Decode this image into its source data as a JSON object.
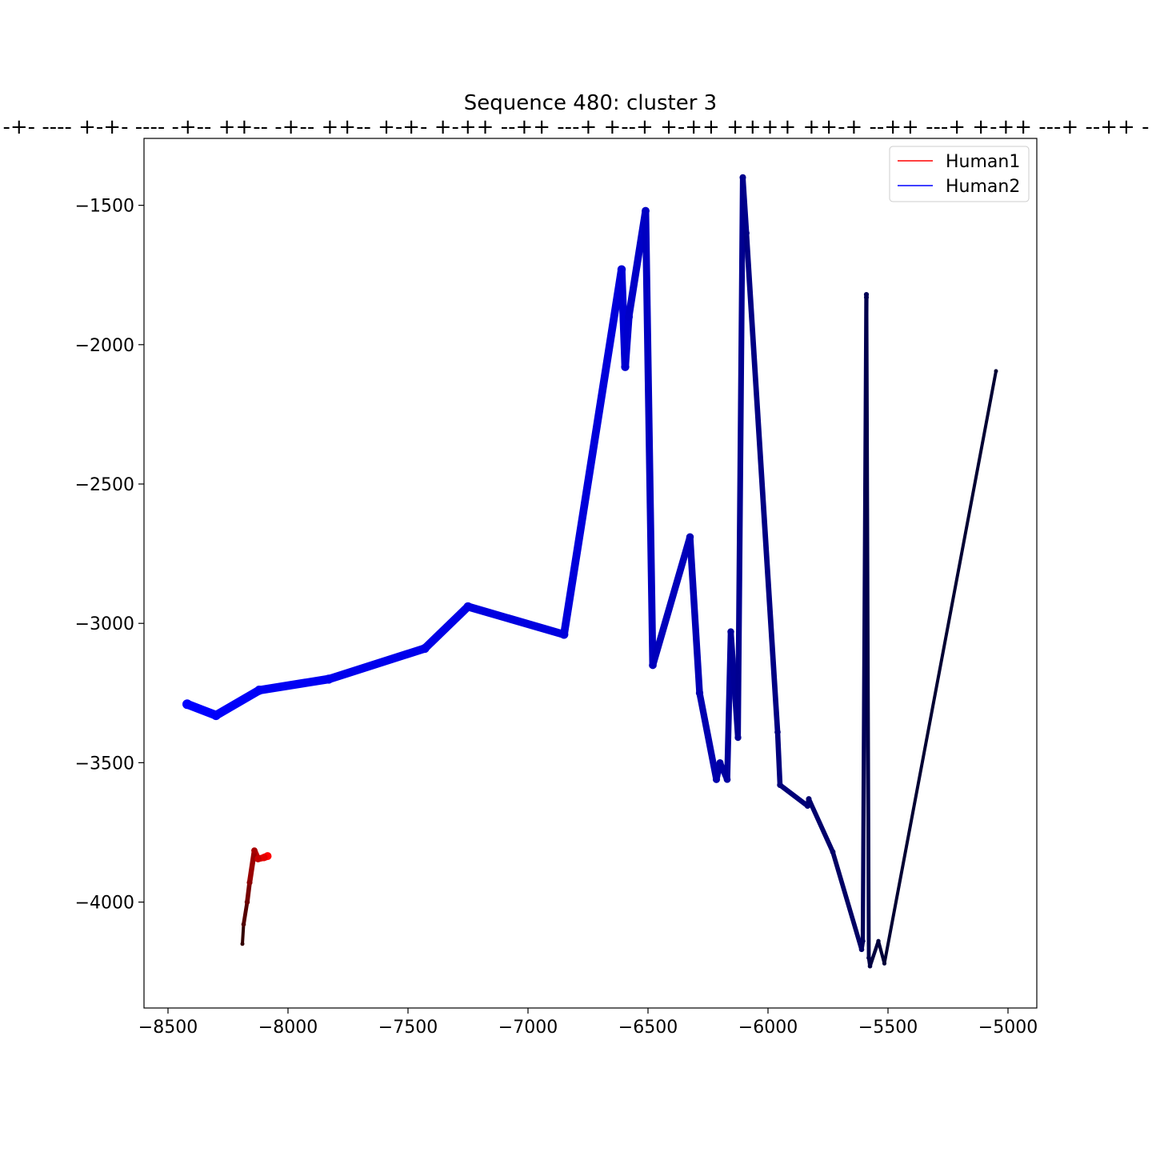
{
  "chart_data": {
    "type": "line",
    "title": "Sequence 480: cluster 3",
    "subtitle": "-+- ---- +-+- ---- -+-- ++-- -+-- ++-- +-+- +-++ --++ ---+ +--+ +-++ ++++ ++-+ --++ ---+ +-++ ---+ --++ -",
    "xlabel": "",
    "ylabel": "",
    "xlim": [
      -8600,
      -4880
    ],
    "ylim": [
      -4380,
      -1260
    ],
    "x_ticks": [
      -8500,
      -8000,
      -7500,
      -7000,
      -6500,
      -6000,
      -5500,
      -5000
    ],
    "y_ticks": [
      -1500,
      -2000,
      -2500,
      -3000,
      -3500,
      -4000
    ],
    "x_tick_labels": [
      "−8500",
      "−8000",
      "−7500",
      "−7000",
      "−6500",
      "−6000",
      "−5500",
      "−5000"
    ],
    "y_tick_labels": [
      "−1500",
      "−2000",
      "−2500",
      "−3000",
      "−3500",
      "−4000"
    ],
    "grid": false,
    "legend_position": "top-right",
    "series": [
      {
        "name": "Human1",
        "color": "#ff0000",
        "color_end": "#330000",
        "x": [
          -8085,
          -8100,
          -8125,
          -8140,
          -8160,
          -8170,
          -8185,
          -8190
        ],
        "y": [
          -3835,
          -3840,
          -3845,
          -3815,
          -3930,
          -4000,
          -4080,
          -4150
        ]
      },
      {
        "name": "Human2",
        "color": "#0000ff",
        "color_end": "#000033",
        "x": [
          -8420,
          -8300,
          -8120,
          -7830,
          -7430,
          -7250,
          -6850,
          -6610,
          -6595,
          -6580,
          -6510,
          -6480,
          -6325,
          -6285,
          -6215,
          -6200,
          -6170,
          -6155,
          -6125,
          -6105,
          -6090,
          -5960,
          -5950,
          -5835,
          -5830,
          -5730,
          -5610,
          -5605,
          -5590,
          -5590,
          -5580,
          -5575,
          -5540,
          -5515,
          -5050
        ],
        "y": [
          -3290,
          -3330,
          -3240,
          -3200,
          -3090,
          -2940,
          -3040,
          -1730,
          -2080,
          -1900,
          -1520,
          -3150,
          -2690,
          -3250,
          -3560,
          -3500,
          -3560,
          -3030,
          -3410,
          -1400,
          -1600,
          -3390,
          -3580,
          -3655,
          -3630,
          -3820,
          -4170,
          -4140,
          -1820,
          -1830,
          -4200,
          -4230,
          -4140,
          -4220,
          -2095
        ]
      }
    ]
  }
}
